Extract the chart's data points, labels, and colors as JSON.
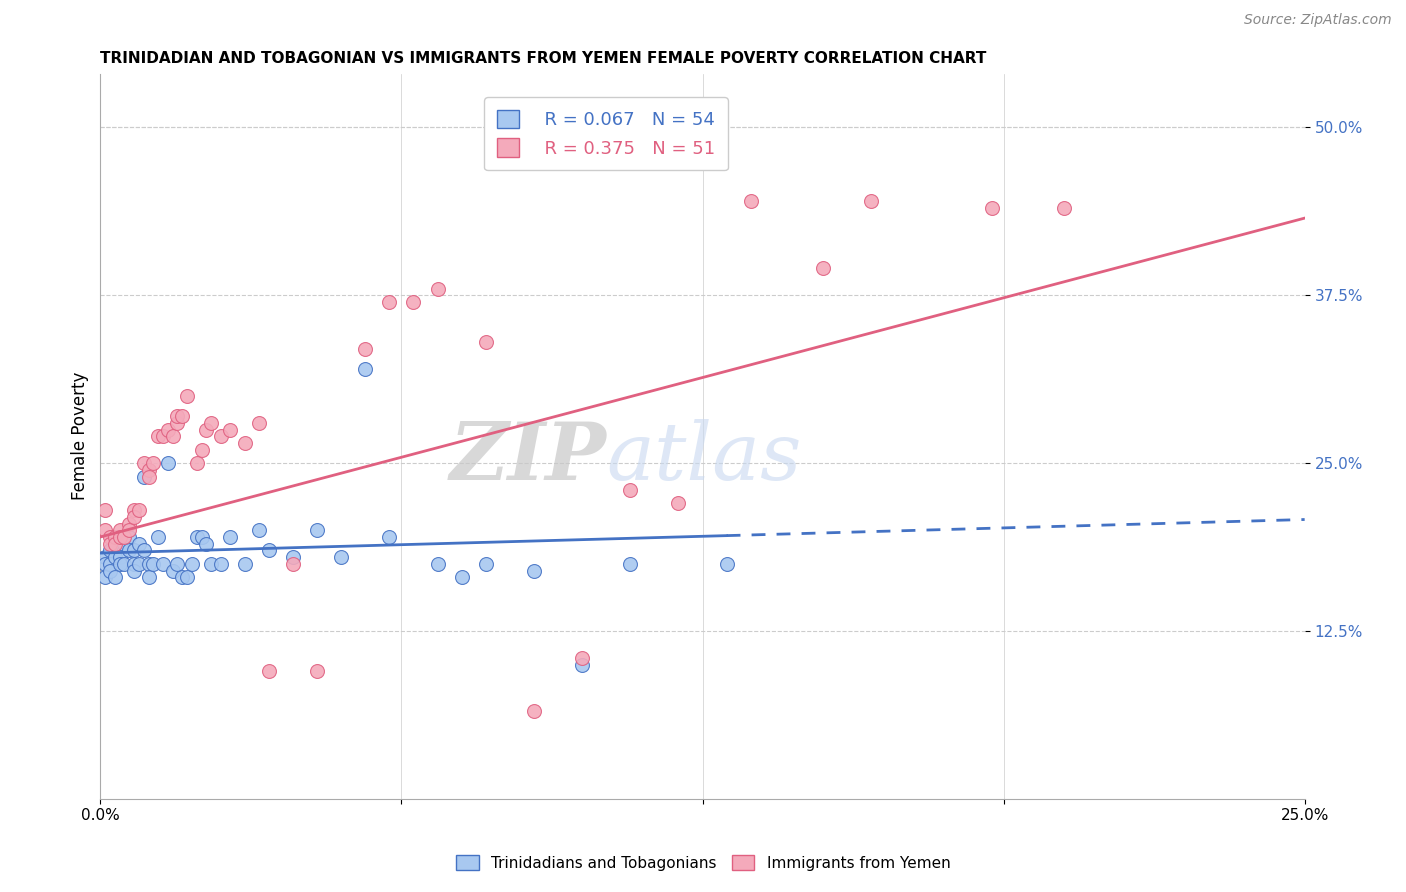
{
  "title": "TRINIDADIAN AND TOBAGONIAN VS IMMIGRANTS FROM YEMEN FEMALE POVERTY CORRELATION CHART",
  "source": "Source: ZipAtlas.com",
  "ylabel": "Female Poverty",
  "yticks": [
    "50.0%",
    "37.5%",
    "25.0%",
    "12.5%"
  ],
  "ytick_vals": [
    0.5,
    0.375,
    0.25,
    0.125
  ],
  "xlim": [
    0.0,
    0.25
  ],
  "ylim": [
    0.0,
    0.54
  ],
  "legend_label1": "Trinidadians and Tobagonians",
  "legend_label2": "Immigrants from Yemen",
  "legend_R1": "R = 0.067",
  "legend_N1": "N = 54",
  "legend_R2": "R = 0.375",
  "legend_N2": "N = 51",
  "color_blue": "#A8C8F0",
  "color_pink": "#F4AABB",
  "line_color_blue": "#4472C4",
  "line_color_pink": "#E06080",
  "background_color": "#FFFFFF",
  "watermark_zip": "ZIP",
  "watermark_atlas": "atlas",
  "trinidadian_x": [
    0.001,
    0.001,
    0.001,
    0.002,
    0.002,
    0.002,
    0.003,
    0.003,
    0.003,
    0.004,
    0.004,
    0.005,
    0.005,
    0.006,
    0.006,
    0.007,
    0.007,
    0.007,
    0.008,
    0.008,
    0.009,
    0.009,
    0.01,
    0.01,
    0.011,
    0.012,
    0.013,
    0.014,
    0.015,
    0.016,
    0.017,
    0.018,
    0.019,
    0.02,
    0.021,
    0.022,
    0.023,
    0.025,
    0.027,
    0.03,
    0.033,
    0.035,
    0.04,
    0.045,
    0.05,
    0.055,
    0.06,
    0.07,
    0.075,
    0.08,
    0.09,
    0.1,
    0.11,
    0.13
  ],
  "trinidadian_y": [
    0.18,
    0.175,
    0.165,
    0.185,
    0.175,
    0.17,
    0.195,
    0.18,
    0.165,
    0.18,
    0.175,
    0.19,
    0.175,
    0.195,
    0.185,
    0.175,
    0.185,
    0.17,
    0.19,
    0.175,
    0.24,
    0.185,
    0.175,
    0.165,
    0.175,
    0.195,
    0.175,
    0.25,
    0.17,
    0.175,
    0.165,
    0.165,
    0.175,
    0.195,
    0.195,
    0.19,
    0.175,
    0.175,
    0.195,
    0.175,
    0.2,
    0.185,
    0.18,
    0.2,
    0.18,
    0.32,
    0.195,
    0.175,
    0.165,
    0.175,
    0.17,
    0.1,
    0.175,
    0.175
  ],
  "yemen_x": [
    0.001,
    0.001,
    0.002,
    0.002,
    0.003,
    0.003,
    0.004,
    0.004,
    0.005,
    0.006,
    0.006,
    0.007,
    0.007,
    0.008,
    0.009,
    0.01,
    0.01,
    0.011,
    0.012,
    0.013,
    0.014,
    0.015,
    0.016,
    0.016,
    0.017,
    0.018,
    0.02,
    0.021,
    0.022,
    0.023,
    0.025,
    0.027,
    0.03,
    0.033,
    0.035,
    0.04,
    0.045,
    0.055,
    0.06,
    0.065,
    0.07,
    0.08,
    0.09,
    0.1,
    0.11,
    0.12,
    0.135,
    0.15,
    0.16,
    0.185,
    0.2
  ],
  "yemen_y": [
    0.2,
    0.215,
    0.195,
    0.19,
    0.195,
    0.19,
    0.2,
    0.195,
    0.195,
    0.205,
    0.2,
    0.215,
    0.21,
    0.215,
    0.25,
    0.245,
    0.24,
    0.25,
    0.27,
    0.27,
    0.275,
    0.27,
    0.28,
    0.285,
    0.285,
    0.3,
    0.25,
    0.26,
    0.275,
    0.28,
    0.27,
    0.275,
    0.265,
    0.28,
    0.095,
    0.175,
    0.095,
    0.335,
    0.37,
    0.37,
    0.38,
    0.34,
    0.065,
    0.105,
    0.23,
    0.22,
    0.445,
    0.395,
    0.445,
    0.44,
    0.44
  ]
}
